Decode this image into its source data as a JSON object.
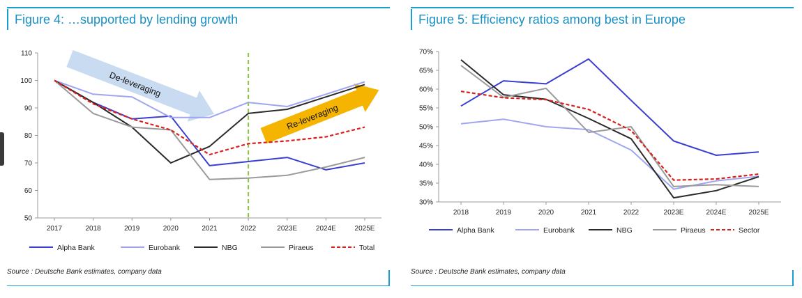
{
  "panels": [
    {
      "title": "Figure 4: …supported by lending growth",
      "source": "Source : Deutsche Bank estimates, company data"
    },
    {
      "title": "Figure 5: Efficiency ratios among best in Europe",
      "source": "Source : Deutsche Bank estimates, company data"
    }
  ],
  "chart_data": [
    {
      "type": "line",
      "title": "Figure 4: …supported by lending growth",
      "x": [
        "2017",
        "2018",
        "2019",
        "2020",
        "2021",
        "2022",
        "2023E",
        "2024E",
        "2025E"
      ],
      "ylim": [
        50,
        110
      ],
      "yticks": [
        "50",
        "60",
        "70",
        "80",
        "90",
        "100",
        "110"
      ],
      "legend_position": "bottom",
      "series": [
        {
          "name": "Alpha Bank",
          "color": "#3a3fcf",
          "dash": "solid",
          "values": [
            100,
            92,
            86,
            87,
            69,
            70.5,
            72,
            67.5,
            70
          ]
        },
        {
          "name": "Eurobank",
          "color": "#9fa6ef",
          "dash": "solid",
          "values": [
            100,
            95,
            94,
            86.5,
            86.5,
            92,
            90.5,
            95,
            99.5
          ]
        },
        {
          "name": "NBG",
          "color": "#2a2a2a",
          "dash": "solid",
          "values": [
            100,
            92,
            83,
            70,
            76,
            88,
            89.5,
            94,
            98.5
          ]
        },
        {
          "name": "Piraeus",
          "color": "#9a9a9a",
          "dash": "solid",
          "values": [
            100,
            88,
            83,
            82,
            64,
            64.5,
            65.5,
            68.5,
            72
          ]
        },
        {
          "name": "Total",
          "color": "#d9201b",
          "dash": "dashed",
          "values": [
            100,
            91.5,
            86,
            82,
            73,
            77,
            78,
            79.5,
            83
          ]
        }
      ],
      "reference_line": {
        "x": "2022",
        "color": "#8cc63f",
        "style": "dashed"
      },
      "annotations": [
        {
          "text": "De-leveraging",
          "color": "#c9dbf0"
        },
        {
          "text": "Re-leveraging",
          "color": "#f5b400"
        }
      ]
    },
    {
      "type": "line",
      "title": "Figure 5: Efficiency ratios among best in Europe",
      "x": [
        "2018",
        "2019",
        "2020",
        "2021",
        "2022",
        "2023E",
        "2024E",
        "2025E"
      ],
      "ylim": [
        30,
        70
      ],
      "yticks": [
        "30%",
        "35%",
        "40%",
        "45%",
        "50%",
        "55%",
        "60%",
        "65%",
        "70%"
      ],
      "legend_position": "bottom",
      "series": [
        {
          "name": "Alpha Bank",
          "color": "#3a3fcf",
          "dash": "solid",
          "values": [
            55.5,
            62.2,
            61.4,
            68,
            57,
            46.2,
            42.4,
            43.3
          ]
        },
        {
          "name": "Eurobank",
          "color": "#9fa6ef",
          "dash": "solid",
          "values": [
            50.8,
            52,
            50,
            49.2,
            43.8,
            33.4,
            35.6,
            36.8
          ]
        },
        {
          "name": "NBG",
          "color": "#2a2a2a",
          "dash": "solid",
          "values": [
            67.8,
            58.5,
            57.3,
            52.2,
            46.8,
            31.1,
            33,
            36.7
          ]
        },
        {
          "name": "Piraeus",
          "color": "#9a9a9a",
          "dash": "solid",
          "values": [
            66.3,
            57.8,
            60.2,
            48.5,
            50,
            34.1,
            34.6,
            34.1
          ]
        },
        {
          "name": "Sector",
          "color": "#d9201b",
          "dash": "dashed",
          "values": [
            59.4,
            57.7,
            57.2,
            54.6,
            49,
            35.8,
            36.1,
            37.4
          ]
        }
      ]
    }
  ]
}
